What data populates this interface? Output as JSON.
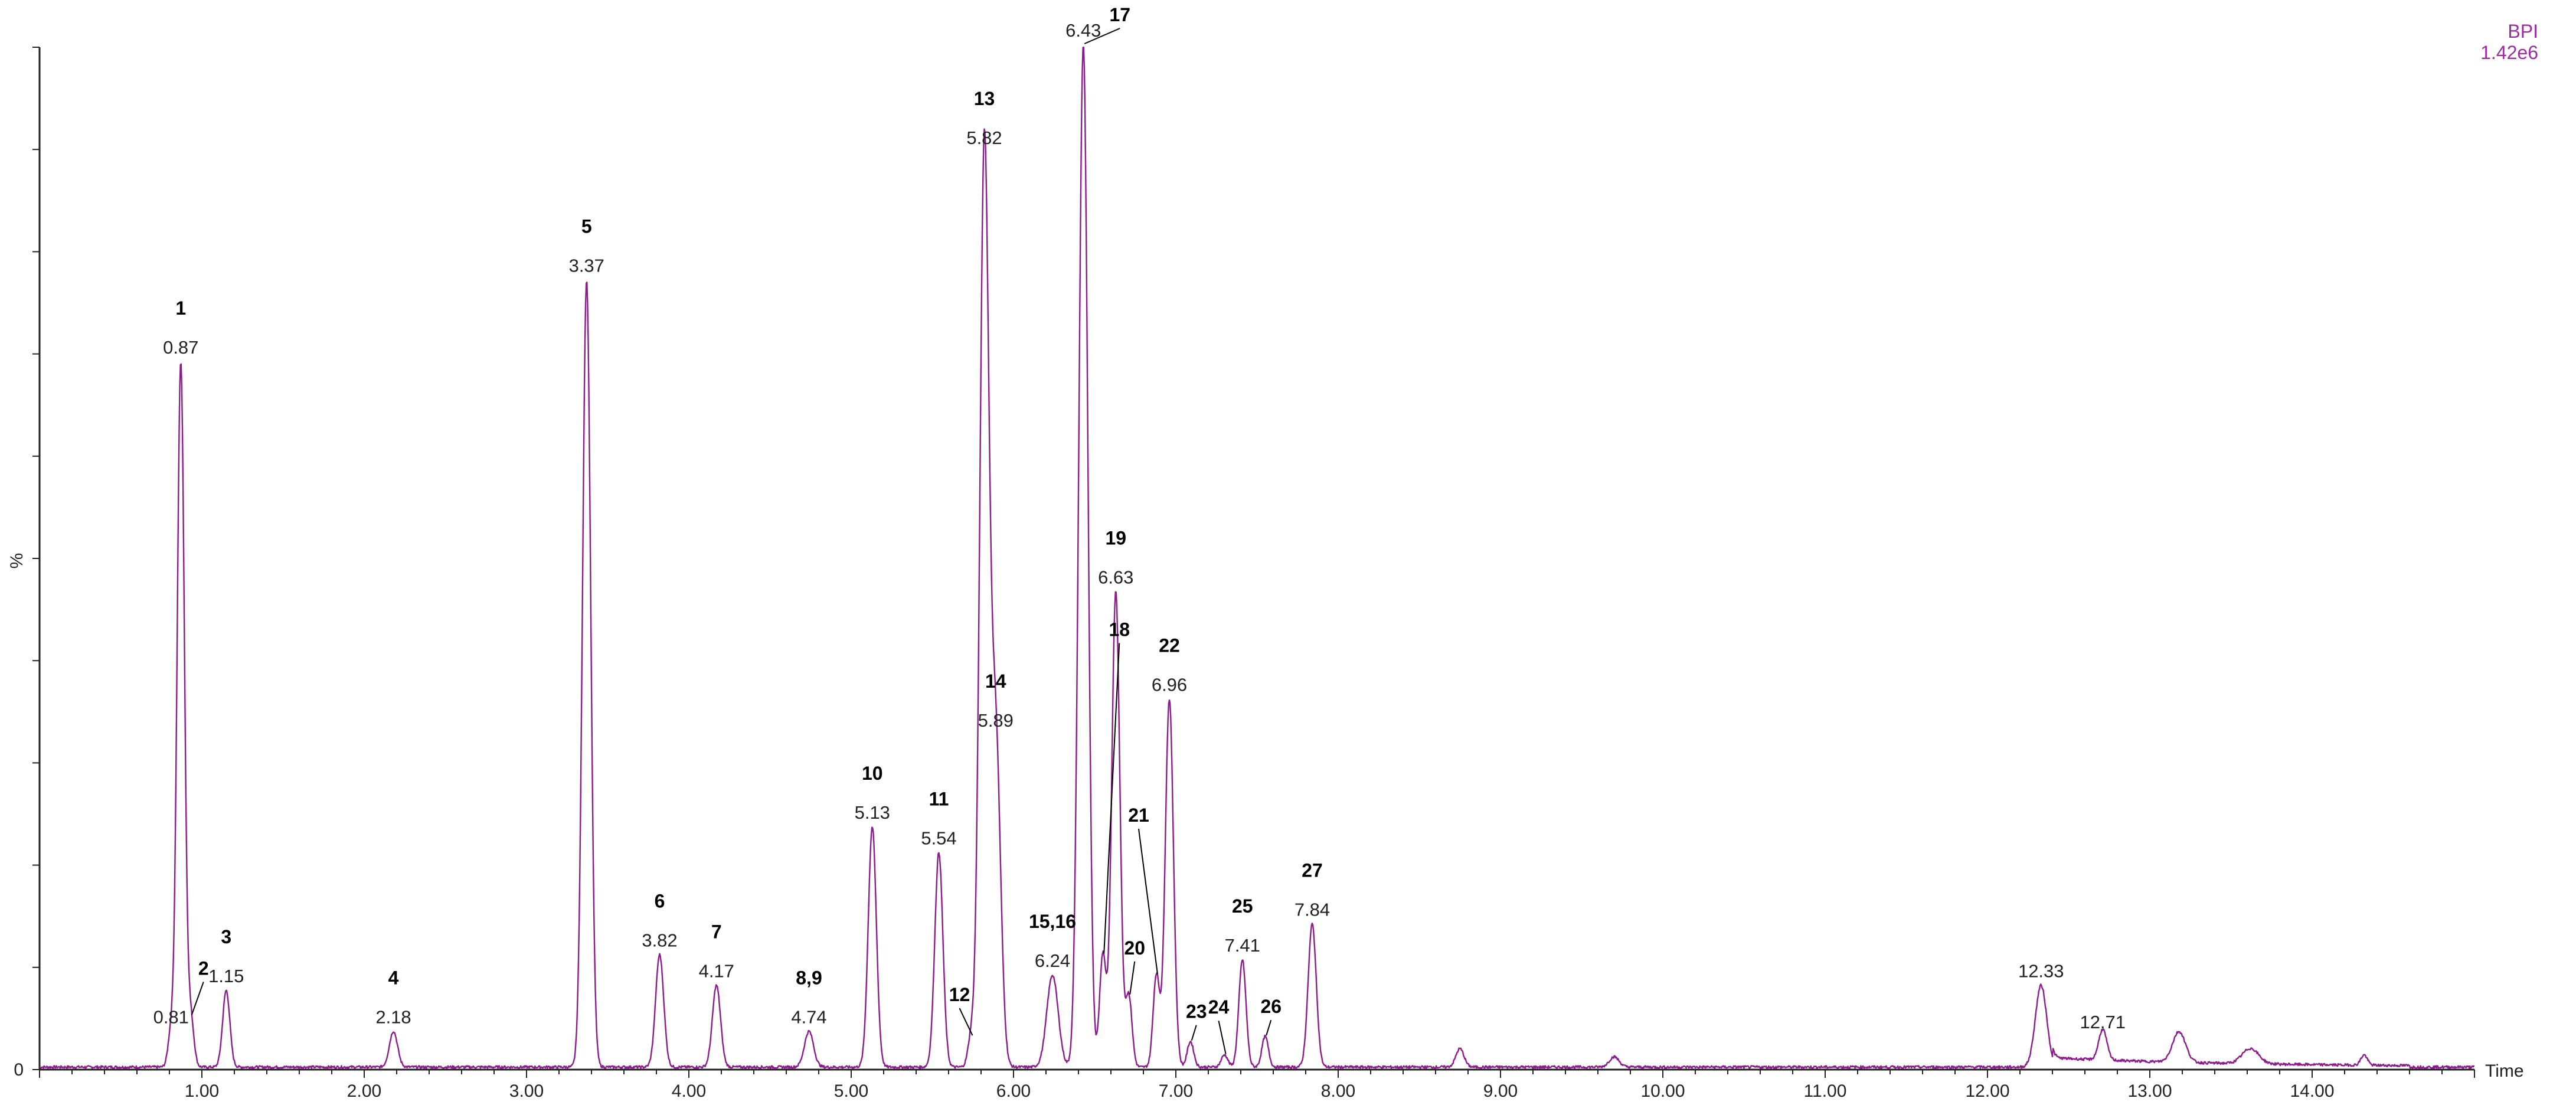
{
  "chart_data": {
    "type": "line",
    "trace_label": "BPI",
    "intensity": "1.42e6",
    "xlabel": "Time",
    "ylabel": "%",
    "y_tick_labels": [
      "0"
    ],
    "xlim": [
      0,
      15
    ],
    "ylim": [
      0,
      100
    ],
    "grid": false,
    "line_color": "#8B1C8B",
    "x_tick_labels": [
      "1.00",
      "2.00",
      "3.00",
      "4.00",
      "5.00",
      "6.00",
      "7.00",
      "8.00",
      "9.00",
      "10.00",
      "11.00",
      "12.00",
      "13.00",
      "14.00"
    ],
    "peaks": [
      {
        "rt": "0.81",
        "x": 0.81,
        "y": 3.5,
        "width": 0.018
      },
      {
        "id": "1",
        "rt": "0.87",
        "x": 0.87,
        "y": 69,
        "width": 0.022
      },
      {
        "id": "2",
        "x": 0.93,
        "y": 5,
        "width": 0.02
      },
      {
        "id": "3",
        "rt": "1.15",
        "x": 1.15,
        "y": 7.5,
        "width": 0.022
      },
      {
        "id": "4",
        "rt": "2.18",
        "x": 2.18,
        "y": 3.5,
        "width": 0.025
      },
      {
        "id": "5",
        "rt": "3.37",
        "x": 3.37,
        "y": 77,
        "width": 0.025
      },
      {
        "id": "6",
        "rt": "3.82",
        "x": 3.82,
        "y": 11,
        "width": 0.025
      },
      {
        "id": "7",
        "rt": "4.17",
        "x": 4.17,
        "y": 8,
        "width": 0.025
      },
      {
        "id": "8,9",
        "rt": "4.74",
        "x": 4.74,
        "y": 3.5,
        "width": 0.028
      },
      {
        "id": "10",
        "rt": "5.13",
        "x": 5.13,
        "y": 23.5,
        "width": 0.025
      },
      {
        "id": "11",
        "rt": "5.54",
        "x": 5.54,
        "y": 21,
        "width": 0.025
      },
      {
        "id": "12",
        "x": 5.74,
        "y": 3,
        "width": 0.02
      },
      {
        "id": "13",
        "rt": "5.82",
        "x": 5.82,
        "y": 89.5,
        "width": 0.028
      },
      {
        "id": "14",
        "rt": "5.89",
        "x": 5.89,
        "y": 32.5,
        "width": 0.03
      },
      {
        "id": "15,16",
        "rt": "6.24",
        "x": 6.24,
        "y": 9,
        "width": 0.035
      },
      {
        "id": "17",
        "rt": "6.43",
        "x": 6.43,
        "y": 100,
        "width": 0.028
      },
      {
        "id": "18",
        "x": 6.55,
        "y": 11,
        "width": 0.02
      },
      {
        "id": "19",
        "rt": "6.63",
        "x": 6.63,
        "y": 46.5,
        "width": 0.025
      },
      {
        "id": "20",
        "x": 6.71,
        "y": 7,
        "width": 0.02
      },
      {
        "id": "21",
        "x": 6.88,
        "y": 9,
        "width": 0.02
      },
      {
        "id": "22",
        "rt": "6.96",
        "x": 6.96,
        "y": 36,
        "width": 0.025
      },
      {
        "id": "23",
        "x": 7.09,
        "y": 2.5,
        "width": 0.02
      },
      {
        "id": "24",
        "x": 7.3,
        "y": 1.2,
        "width": 0.02
      },
      {
        "id": "25",
        "rt": "7.41",
        "x": 7.41,
        "y": 10.5,
        "width": 0.022
      },
      {
        "id": "26",
        "x": 7.55,
        "y": 3,
        "width": 0.02
      },
      {
        "id": "27",
        "rt": "7.84",
        "x": 7.84,
        "y": 14,
        "width": 0.025
      },
      {
        "x": 8.75,
        "y": 1.8,
        "width": 0.025
      },
      {
        "x": 9.7,
        "y": 1.0,
        "width": 0.03
      },
      {
        "rt": "12.33",
        "x": 12.33,
        "y": 8,
        "width": 0.035
      },
      {
        "rt": "12.71",
        "x": 12.71,
        "y": 3,
        "width": 0.025
      },
      {
        "x": 13.18,
        "y": 3,
        "width": 0.04
      },
      {
        "x": 13.62,
        "y": 1.5,
        "width": 0.05
      },
      {
        "x": 14.32,
        "y": 1,
        "width": 0.02
      }
    ]
  }
}
